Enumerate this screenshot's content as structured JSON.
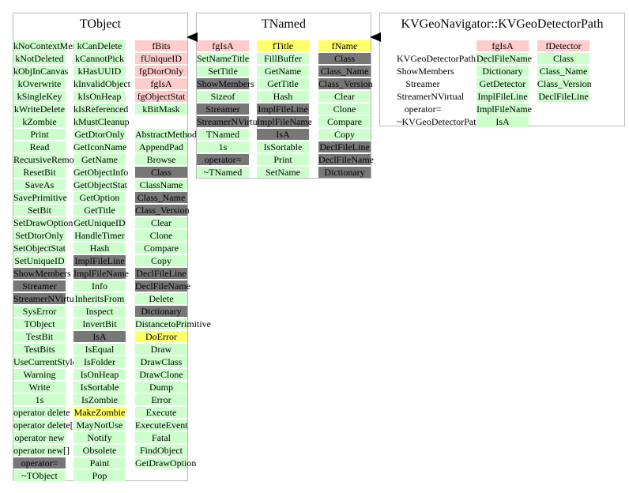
{
  "palette": {
    "green": "#ccffcc",
    "gray": "#777777",
    "pink": "#ffcccc",
    "yellow": "#ffff66"
  },
  "classes": [
    {
      "id": "tobject",
      "title": "TObject",
      "columns": [
        {
          "items": [
            {
              "t": "kNoContextMenu",
              "c": "green"
            },
            {
              "t": "kNotDeleted",
              "c": "green"
            },
            {
              "t": "kObjInCanvas",
              "c": "green"
            },
            {
              "t": "kOverwrite",
              "c": "green"
            },
            {
              "t": "kSingleKey",
              "c": "green"
            },
            {
              "t": "kWriteDelete",
              "c": "green"
            },
            {
              "t": "kZombie",
              "c": "green"
            },
            {
              "t": "Print",
              "c": "green"
            },
            {
              "t": "Read",
              "c": "green"
            },
            {
              "t": "RecursiveRemove",
              "c": "green"
            },
            {
              "t": "ResetBit",
              "c": "green"
            },
            {
              "t": "SaveAs",
              "c": "green"
            },
            {
              "t": "SavePrimitive",
              "c": "green"
            },
            {
              "t": "SetBit",
              "c": "green"
            },
            {
              "t": "SetDrawOption",
              "c": "green"
            },
            {
              "t": "SetDtorOnly",
              "c": "green"
            },
            {
              "t": "SetObjectStat",
              "c": "green"
            },
            {
              "t": "SetUniqueID",
              "c": "green"
            },
            {
              "t": "ShowMembers",
              "c": "gray"
            },
            {
              "t": "Streamer",
              "c": "gray"
            },
            {
              "t": "StreamerNVirtual",
              "c": "gray"
            },
            {
              "t": "SysError",
              "c": "green"
            },
            {
              "t": "TObject",
              "c": "green"
            },
            {
              "t": "TestBit",
              "c": "green"
            },
            {
              "t": "TestBits",
              "c": "green"
            },
            {
              "t": "UseCurrentStyle",
              "c": "green"
            },
            {
              "t": "Warning",
              "c": "green"
            },
            {
              "t": "Write",
              "c": "green"
            },
            {
              "t": "1s",
              "c": "green"
            },
            {
              "t": "operator delete",
              "c": "green"
            },
            {
              "t": "operator delete[]",
              "c": "green"
            },
            {
              "t": "operator new",
              "c": "green"
            },
            {
              "t": "operator new[]",
              "c": "green"
            },
            {
              "t": "operator=",
              "c": "gray"
            },
            {
              "t": "~TObject",
              "c": "green"
            }
          ]
        },
        {
          "items": [
            {
              "t": "kCanDelete",
              "c": "green"
            },
            {
              "t": "kCannotPick",
              "c": "green"
            },
            {
              "t": "kHasUUID",
              "c": "green"
            },
            {
              "t": "kInvalidObject",
              "c": "green"
            },
            {
              "t": "kIsOnHeap",
              "c": "green"
            },
            {
              "t": "kIsReferenced",
              "c": "green"
            },
            {
              "t": "kMustCleanup",
              "c": "green"
            },
            {
              "t": "GetDtorOnly",
              "c": "green"
            },
            {
              "t": "GetIconName",
              "c": "green"
            },
            {
              "t": "GetName",
              "c": "green"
            },
            {
              "t": "GetObjectInfo",
              "c": "green"
            },
            {
              "t": "GetObjectStat",
              "c": "green"
            },
            {
              "t": "GetOption",
              "c": "green"
            },
            {
              "t": "GetTitle",
              "c": "green"
            },
            {
              "t": "GetUniqueID",
              "c": "green"
            },
            {
              "t": "HandleTimer",
              "c": "green"
            },
            {
              "t": "Hash",
              "c": "green"
            },
            {
              "t": "ImplFileLine",
              "c": "gray"
            },
            {
              "t": "ImplFileName",
              "c": "gray"
            },
            {
              "t": "Info",
              "c": "green"
            },
            {
              "t": "InheritsFrom",
              "c": "green"
            },
            {
              "t": "Inspect",
              "c": "green"
            },
            {
              "t": "InvertBit",
              "c": "green"
            },
            {
              "t": "IsA",
              "c": "gray"
            },
            {
              "t": "IsEqual",
              "c": "green"
            },
            {
              "t": "IsFolder",
              "c": "green"
            },
            {
              "t": "IsOnHeap",
              "c": "green"
            },
            {
              "t": "IsSortable",
              "c": "green"
            },
            {
              "t": "IsZombie",
              "c": "green"
            },
            {
              "t": "MakeZombie",
              "c": "yellow"
            },
            {
              "t": "MayNotUse",
              "c": "green"
            },
            {
              "t": "Notify",
              "c": "green"
            },
            {
              "t": "Obsolete",
              "c": "green"
            },
            {
              "t": "Paint",
              "c": "green"
            },
            {
              "t": "Pop",
              "c": "green"
            }
          ]
        },
        {
          "items": [
            {
              "t": "fBits",
              "c": "pink"
            },
            {
              "t": "fUniqueID",
              "c": "pink"
            },
            {
              "t": "fgDtorOnly",
              "c": "pink"
            },
            {
              "t": "fgIsA",
              "c": "pink"
            },
            {
              "t": "fgObjectStat",
              "c": "pink"
            },
            {
              "t": "kBitMask",
              "c": "green"
            },
            {
              "t": "",
              "c": "none"
            },
            {
              "t": "AbstractMethod",
              "c": "green"
            },
            {
              "t": "AppendPad",
              "c": "green"
            },
            {
              "t": "Browse",
              "c": "green"
            },
            {
              "t": "Class",
              "c": "gray"
            },
            {
              "t": "ClassName",
              "c": "green"
            },
            {
              "t": "Class_Name",
              "c": "gray"
            },
            {
              "t": "Class_Version",
              "c": "gray"
            },
            {
              "t": "Clear",
              "c": "green"
            },
            {
              "t": "Clone",
              "c": "green"
            },
            {
              "t": "Compare",
              "c": "green"
            },
            {
              "t": "Copy",
              "c": "green"
            },
            {
              "t": "DeclFileLine",
              "c": "gray"
            },
            {
              "t": "DeclFileName",
              "c": "gray"
            },
            {
              "t": "Delete",
              "c": "green"
            },
            {
              "t": "Dictionary",
              "c": "gray"
            },
            {
              "t": "DistancetoPrimitive",
              "c": "green"
            },
            {
              "t": "DoError",
              "c": "yellow"
            },
            {
              "t": "Draw",
              "c": "green"
            },
            {
              "t": "DrawClass",
              "c": "green"
            },
            {
              "t": "DrawClone",
              "c": "green"
            },
            {
              "t": "Dump",
              "c": "green"
            },
            {
              "t": "Error",
              "c": "green"
            },
            {
              "t": "Execute",
              "c": "green"
            },
            {
              "t": "ExecuteEvent",
              "c": "green"
            },
            {
              "t": "Fatal",
              "c": "green"
            },
            {
              "t": "FindObject",
              "c": "green"
            },
            {
              "t": "GetDrawOption",
              "c": "green"
            }
          ]
        }
      ]
    },
    {
      "id": "tnamed",
      "title": "TNamed",
      "columns": [
        {
          "items": [
            {
              "t": "fgIsA",
              "c": "pink"
            },
            {
              "t": "SetNameTitle",
              "c": "green"
            },
            {
              "t": "SetTitle",
              "c": "green"
            },
            {
              "t": "ShowMembers",
              "c": "gray"
            },
            {
              "t": "Sizeof",
              "c": "green"
            },
            {
              "t": "Streamer",
              "c": "gray"
            },
            {
              "t": "StreamerNVirtual",
              "c": "gray"
            },
            {
              "t": "TNamed",
              "c": "green"
            },
            {
              "t": "1s",
              "c": "green"
            },
            {
              "t": "operator=",
              "c": "gray"
            },
            {
              "t": "~TNamed",
              "c": "green"
            }
          ]
        },
        {
          "items": [
            {
              "t": "fTitle",
              "c": "yellow"
            },
            {
              "t": "FillBuffer",
              "c": "green"
            },
            {
              "t": "GetName",
              "c": "green"
            },
            {
              "t": "GetTitle",
              "c": "green"
            },
            {
              "t": "Hash",
              "c": "green"
            },
            {
              "t": "ImplFileLine",
              "c": "gray"
            },
            {
              "t": "ImplFileName",
              "c": "gray"
            },
            {
              "t": "IsA",
              "c": "gray"
            },
            {
              "t": "IsSortable",
              "c": "green"
            },
            {
              "t": "Print",
              "c": "green"
            },
            {
              "t": "SetName",
              "c": "green"
            }
          ]
        },
        {
          "items": [
            {
              "t": "fName",
              "c": "yellow"
            },
            {
              "t": "Class",
              "c": "gray"
            },
            {
              "t": "Class_Name",
              "c": "gray"
            },
            {
              "t": "Class_Version",
              "c": "gray"
            },
            {
              "t": "Clear",
              "c": "green"
            },
            {
              "t": "Clone",
              "c": "green"
            },
            {
              "t": "Compare",
              "c": "green"
            },
            {
              "t": "Copy",
              "c": "green"
            },
            {
              "t": "DeclFileLine",
              "c": "gray"
            },
            {
              "t": "DeclFileName",
              "c": "gray"
            },
            {
              "t": "Dictionary",
              "c": "gray"
            }
          ]
        }
      ]
    },
    {
      "id": "kvgeo",
      "title": "KVGeoNavigator::KVGeoDetectorPath",
      "columns": [
        {
          "items": [
            {
              "t": "",
              "c": "none"
            },
            {
              "t": "KVGeoDetectorPath",
              "c": "none"
            },
            {
              "t": "ShowMembers",
              "c": "none"
            },
            {
              "t": "Streamer",
              "c": "none"
            },
            {
              "t": "StreamerNVirtual",
              "c": "none"
            },
            {
              "t": "operator=",
              "c": "none"
            },
            {
              "t": "~KVGeoDetectorPath",
              "c": "none"
            }
          ]
        },
        {
          "items": [
            {
              "t": "fgIsA",
              "c": "pink"
            },
            {
              "t": "DeclFileName",
              "c": "green"
            },
            {
              "t": "Dictionary",
              "c": "green"
            },
            {
              "t": "GetDetector",
              "c": "green"
            },
            {
              "t": "ImplFileLine",
              "c": "green"
            },
            {
              "t": "ImplFileName",
              "c": "green"
            },
            {
              "t": "IsA",
              "c": "green"
            }
          ]
        },
        {
          "items": [
            {
              "t": "fDetector",
              "c": "pink"
            },
            {
              "t": "Class",
              "c": "green"
            },
            {
              "t": "Class_Name",
              "c": "green"
            },
            {
              "t": "Class_Version",
              "c": "green"
            },
            {
              "t": "DeclFileLine",
              "c": "green"
            }
          ]
        }
      ]
    }
  ]
}
